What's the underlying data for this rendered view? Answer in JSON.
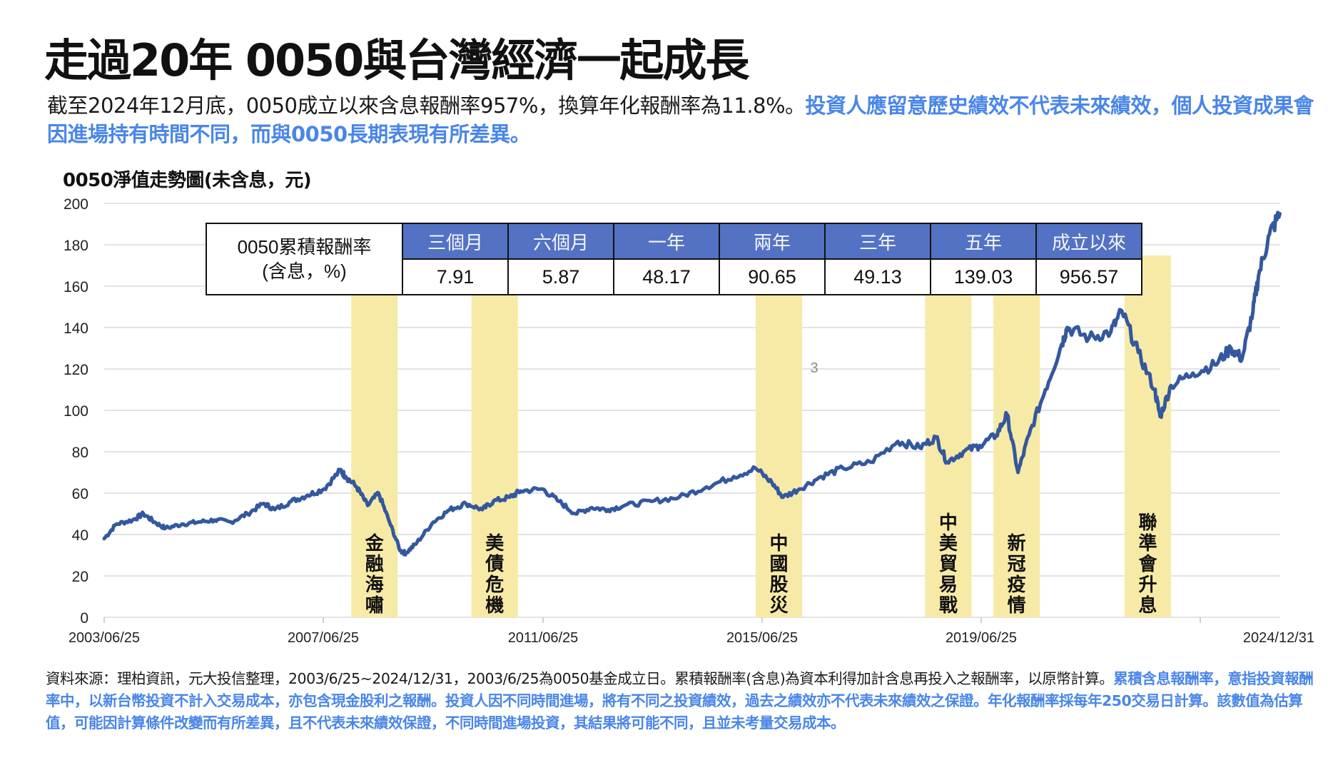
{
  "header": {
    "title": "走過20年 0050與台灣經濟一起成長",
    "intro_plain": "截至2024年12月底，0050成立以來含息報酬率957%，換算年化報酬率為11.8%。",
    "intro_highlight": "投資人應留意歷史績效不代表未來績效，個人投資成果會因進場持有時間不同，而與0050長期表現有所差異。"
  },
  "colors": {
    "line": "#34589e",
    "event_band": "#f7eaa6",
    "table_header": "#5472c4",
    "highlight_text": "#4a86e8",
    "grid": "#e3e3e3"
  },
  "table": {
    "label_line1": "0050累積報酬率",
    "label_line2": "(含息，%)",
    "headers": [
      "三個月",
      "六個月",
      "一年",
      "兩年",
      "三年",
      "五年",
      "成立以來"
    ],
    "values": [
      "7.91",
      "5.87",
      "48.17",
      "90.65",
      "49.13",
      "139.03",
      "956.57"
    ]
  },
  "stray_marker": "3",
  "chart_data": {
    "type": "line",
    "title": "0050淨值走勢圖(未含息，元)",
    "xlabel": "",
    "ylabel": "元",
    "ylim": [
      0,
      200
    ],
    "yticks": [
      0,
      20,
      40,
      60,
      80,
      100,
      120,
      140,
      160,
      180,
      200
    ],
    "xtick_labels": [
      "2003/06/25",
      "2007/06/25",
      "2011/06/25",
      "2015/06/25",
      "2019/06/25",
      "2024/12/31"
    ],
    "grid": true,
    "legend": null,
    "series": [
      {
        "name": "0050淨值",
        "x": [
          2003.48,
          2003.7,
          2004.0,
          2004.2,
          2004.4,
          2004.6,
          2004.9,
          2005.2,
          2005.5,
          2005.8,
          2006.1,
          2006.4,
          2006.6,
          2006.9,
          2007.2,
          2007.5,
          2007.8,
          2007.9,
          2008.1,
          2008.3,
          2008.5,
          2008.7,
          2008.9,
          2009.0,
          2009.2,
          2009.5,
          2009.8,
          2010.1,
          2010.4,
          2010.6,
          2010.9,
          2011.1,
          2011.5,
          2011.8,
          2012.1,
          2012.4,
          2012.7,
          2013.0,
          2013.5,
          2014.0,
          2014.5,
          2015.0,
          2015.4,
          2015.7,
          2015.9,
          2016.2,
          2016.6,
          2017.0,
          2017.5,
          2018.0,
          2018.4,
          2018.7,
          2018.9,
          2019.2,
          2019.5,
          2019.8,
          2020.0,
          2020.2,
          2020.4,
          2020.7,
          2021.0,
          2021.1,
          2021.5,
          2021.9,
          2022.1,
          2022.4,
          2022.7,
          2022.8,
          2023.0,
          2023.4,
          2023.8,
          2024.1,
          2024.3,
          2024.5,
          2024.6,
          2024.8,
          2024.99
        ],
        "values": [
          38,
          45,
          47,
          50,
          46,
          43,
          45,
          46,
          47,
          46,
          50,
          55,
          52,
          56,
          59,
          62,
          71,
          68,
          63,
          54,
          60,
          46,
          32,
          31,
          36,
          46,
          52,
          55,
          52,
          56,
          58,
          61,
          62,
          56,
          50,
          53,
          52,
          54,
          56,
          58,
          63,
          68,
          72,
          65,
          58,
          62,
          68,
          72,
          75,
          85,
          82,
          87,
          75,
          80,
          83,
          88,
          98,
          70,
          88,
          110,
          132,
          140,
          135,
          138,
          148,
          128,
          110,
          97,
          112,
          118,
          122,
          130,
          125,
          148,
          165,
          185,
          195
        ]
      }
    ],
    "event_bands": [
      {
        "label": "金融海嘯",
        "x0": 2008.0,
        "x1": 2008.85
      },
      {
        "label": "美債危機",
        "x0": 2010.2,
        "x1": 2011.05
      },
      {
        "label": "中國股災",
        "x0": 2015.4,
        "x1": 2016.25
      },
      {
        "label": "中美貿易戰",
        "x0": 2018.5,
        "x1": 2019.35
      },
      {
        "label": "新冠疫情",
        "x0": 2019.75,
        "x1": 2020.6
      },
      {
        "label": "聯準會升息",
        "x0": 2022.15,
        "x1": 2023.0
      }
    ]
  },
  "footnote": {
    "plain": "資料來源：理柏資訊，元大投信整理，2003/6/25~2024/12/31，2003/6/25為0050基金成立日。累積報酬率(含息)為資本利得加計含息再投入之報酬率，以原幣計算。",
    "highlight": "累積含息報酬率，意指投資報酬率中，以新台幣投資不計入交易成本，亦包含現金股利之報酬。投資人因不同時間進場，將有不同之投資績效，過去之績效亦不代表未來績效之保證。年化報酬率採每年250交易日計算。該數值為估算值，可能因計算條件改變而有所差異，且不代表未來績效保證，不同時間進場投資，其結果將可能不同，且並未考量交易成本。"
  }
}
